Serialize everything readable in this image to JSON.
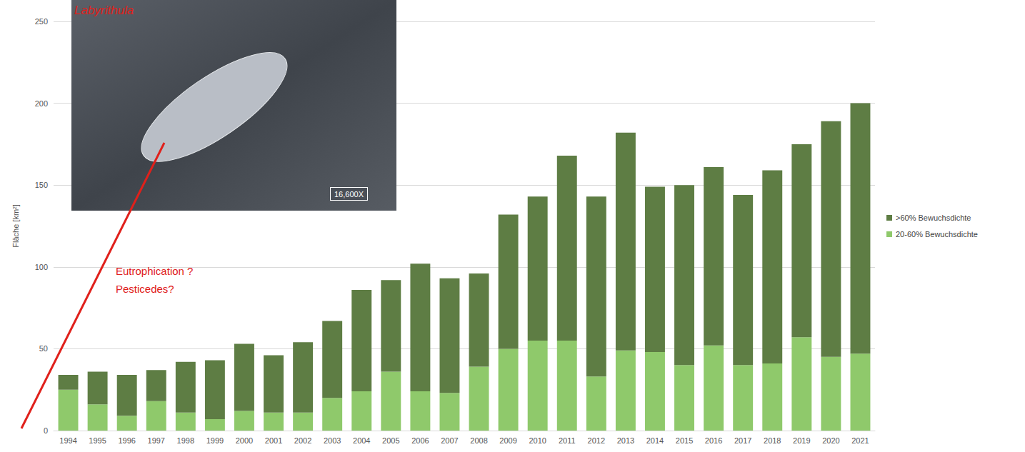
{
  "chart_data": {
    "type": "bar",
    "stacked": true,
    "grid": true,
    "legend": "right",
    "y_label": "Fläche [km²]",
    "categories": [
      "1994",
      "1995",
      "1996",
      "1997",
      "1998",
      "1999",
      "2000",
      "2001",
      "2002",
      "2003",
      "2004",
      "2005",
      "2006",
      "2007",
      "2008",
      "2009",
      "2010",
      "2011",
      "2012",
      "2013",
      "2014",
      "2015",
      "2016",
      "2017",
      "2018",
      "2019",
      "2020",
      "2021"
    ],
    "series": [
      {
        "name": ">60% Bewuchsdichte",
        "color": "#5e7d44",
        "values": [
          9,
          20,
          25,
          19,
          31,
          36,
          41,
          35,
          43,
          47,
          62,
          56,
          78,
          70,
          57,
          82,
          88,
          113,
          110,
          133,
          101,
          110,
          109,
          104,
          118,
          118,
          144,
          153
        ]
      },
      {
        "name": "20-60% Bewuchsdichte",
        "color": "#8fc96b",
        "values": [
          25,
          16,
          9,
          18,
          11,
          7,
          12,
          11,
          11,
          20,
          24,
          36,
          24,
          23,
          39,
          50,
          55,
          55,
          33,
          49,
          48,
          40,
          52,
          40,
          41,
          57,
          45,
          47
        ]
      }
    ],
    "ylim": [
      0,
      250
    ],
    "yticks": [
      0,
      50,
      100,
      150,
      200,
      250
    ],
    "annotations": [
      "Labyrithula",
      "16,600X",
      "Eutrophication ?",
      "Pesticedes?"
    ]
  }
}
